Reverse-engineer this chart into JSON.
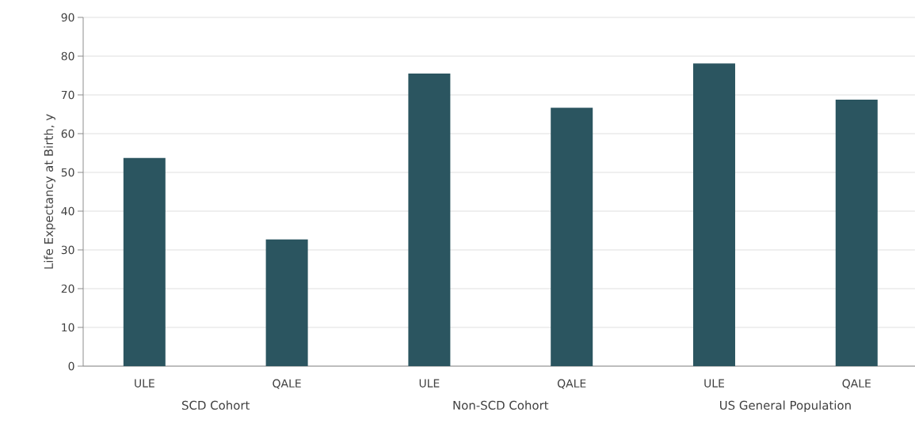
{
  "chart_data": {
    "type": "bar",
    "ylabel": "Life Expectancy at Birth, y",
    "categories": [
      "ULE",
      "QALE",
      "ULE",
      "QALE",
      "ULE",
      "QALE"
    ],
    "values": [
      53.7,
      32.7,
      75.5,
      66.7,
      78.1,
      68.8
    ],
    "color": "#2b5560",
    "ylim": [
      0,
      90
    ],
    "yticks": [
      0,
      10,
      20,
      30,
      40,
      50,
      60,
      70,
      80,
      90
    ],
    "grid": "y",
    "annotations": [
      "SCD Cohort",
      "Non-SCD Cohort",
      "US General Population"
    ]
  }
}
